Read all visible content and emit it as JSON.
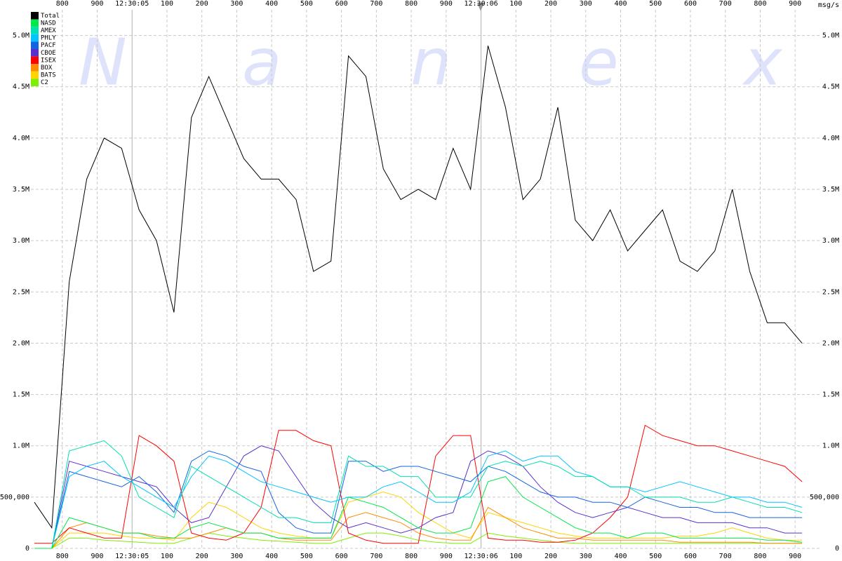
{
  "chart_data": {
    "type": "line",
    "watermark": [
      "N",
      "a",
      "n",
      "e",
      "x"
    ],
    "y_unit": "msg/s",
    "x": [
      4720,
      4770,
      4820,
      4870,
      4920,
      4970,
      5020,
      5070,
      5120,
      5170,
      5220,
      5270,
      5320,
      5370,
      5420,
      5470,
      5520,
      5570,
      5620,
      5670,
      5720,
      5770,
      5820,
      5870,
      5920,
      5970,
      6020,
      6070,
      6120,
      6170,
      6220,
      6270,
      6320,
      6370,
      6420,
      6470,
      6520,
      6570,
      6620,
      6670,
      6720,
      6770,
      6820,
      6870,
      6920
    ],
    "xlim": [
      4710,
      6970
    ],
    "xticks": [
      {
        "value": 4800,
        "label": "800"
      },
      {
        "value": 4900,
        "label": "900"
      },
      {
        "value": 5000,
        "label": "12:30:05"
      },
      {
        "value": 5100,
        "label": "100"
      },
      {
        "value": 5200,
        "label": "200"
      },
      {
        "value": 5300,
        "label": "300"
      },
      {
        "value": 5400,
        "label": "400"
      },
      {
        "value": 5500,
        "label": "500"
      },
      {
        "value": 5600,
        "label": "600"
      },
      {
        "value": 5700,
        "label": "700"
      },
      {
        "value": 5800,
        "label": "800"
      },
      {
        "value": 5900,
        "label": "900"
      },
      {
        "value": 6000,
        "label": "12:30:06"
      },
      {
        "value": 6100,
        "label": "100"
      },
      {
        "value": 6200,
        "label": "200"
      },
      {
        "value": 6300,
        "label": "300"
      },
      {
        "value": 6400,
        "label": "400"
      },
      {
        "value": 6500,
        "label": "500"
      },
      {
        "value": 6600,
        "label": "600"
      },
      {
        "value": 6700,
        "label": "700"
      },
      {
        "value": 6800,
        "label": "800"
      },
      {
        "value": 6900,
        "label": "900"
      }
    ],
    "ylim": [
      0,
      5250000
    ],
    "yticks": [
      0,
      {
        "value": 500000,
        "label": "500,000"
      },
      {
        "value": 1000000,
        "label": "1.0M"
      },
      {
        "value": 1500000,
        "label": "1.5M"
      },
      {
        "value": 2000000,
        "label": "2.0M"
      },
      {
        "value": 2500000,
        "label": "2.5M"
      },
      {
        "value": 3000000,
        "label": "3.0M"
      },
      {
        "value": 3500000,
        "label": "3.5M"
      },
      {
        "value": 4000000,
        "label": "4.0M"
      },
      {
        "value": 4500000,
        "label": "4.5M"
      },
      {
        "value": 5000000,
        "label": "5.0M"
      }
    ],
    "grid": true,
    "legend": "top-left",
    "series": [
      {
        "name": "Total",
        "color": "#000000",
        "values": [
          450000,
          200000,
          2600000,
          3600000,
          4000000,
          3900000,
          3300000,
          3000000,
          2300000,
          4200000,
          4600000,
          4200000,
          3800000,
          3600000,
          3600000,
          3400000,
          2700000,
          2800000,
          4800000,
          4600000,
          3700000,
          3400000,
          3500000,
          3400000,
          3900000,
          3500000,
          4900000,
          4300000,
          3400000,
          3600000,
          4300000,
          3200000,
          3000000,
          3300000,
          2900000,
          3100000,
          3300000,
          2800000,
          2700000,
          2900000,
          3500000,
          2700000,
          2200000,
          2200000,
          2000000
        ]
      },
      {
        "name": "NASD",
        "color": "#00e84a",
        "values": [
          0,
          0,
          300000,
          250000,
          200000,
          150000,
          150000,
          100000,
          100000,
          200000,
          250000,
          200000,
          150000,
          150000,
          100000,
          100000,
          100000,
          100000,
          500000,
          450000,
          400000,
          300000,
          200000,
          150000,
          150000,
          200000,
          650000,
          700000,
          500000,
          400000,
          300000,
          200000,
          150000,
          150000,
          100000,
          150000,
          150000,
          100000,
          100000,
          100000,
          100000,
          100000,
          80000,
          80000,
          60000
        ]
      },
      {
        "name": "AMEX",
        "color": "#00e0b0",
        "values": [
          0,
          0,
          950000,
          1000000,
          1050000,
          900000,
          500000,
          400000,
          300000,
          800000,
          700000,
          600000,
          500000,
          400000,
          300000,
          300000,
          250000,
          250000,
          900000,
          800000,
          800000,
          700000,
          700000,
          500000,
          500000,
          500000,
          800000,
          850000,
          800000,
          850000,
          800000,
          700000,
          700000,
          600000,
          600000,
          500000,
          500000,
          500000,
          450000,
          450000,
          500000,
          450000,
          400000,
          400000,
          350000
        ]
      },
      {
        "name": "PHLY",
        "color": "#00c4ff",
        "values": [
          0,
          0,
          700000,
          800000,
          850000,
          700000,
          600000,
          500000,
          400000,
          700000,
          900000,
          850000,
          750000,
          650000,
          600000,
          550000,
          500000,
          450000,
          500000,
          500000,
          600000,
          650000,
          550000,
          450000,
          450000,
          550000,
          900000,
          950000,
          850000,
          900000,
          900000,
          750000,
          700000,
          600000,
          600000,
          550000,
          600000,
          650000,
          600000,
          550000,
          500000,
          500000,
          450000,
          450000,
          400000
        ]
      },
      {
        "name": "PACF",
        "color": "#1464e0",
        "values": [
          0,
          0,
          750000,
          700000,
          650000,
          600000,
          700000,
          550000,
          350000,
          850000,
          950000,
          900000,
          800000,
          750000,
          350000,
          200000,
          150000,
          150000,
          850000,
          850000,
          750000,
          800000,
          800000,
          750000,
          700000,
          650000,
          800000,
          750000,
          650000,
          550000,
          500000,
          500000,
          450000,
          450000,
          400000,
          500000,
          450000,
          400000,
          400000,
          350000,
          350000,
          300000,
          300000,
          300000,
          300000
        ]
      },
      {
        "name": "CBOE",
        "color": "#5a30cc",
        "values": [
          0,
          0,
          850000,
          800000,
          750000,
          700000,
          650000,
          600000,
          400000,
          250000,
          300000,
          600000,
          900000,
          1000000,
          950000,
          700000,
          450000,
          300000,
          200000,
          250000,
          200000,
          150000,
          200000,
          300000,
          350000,
          850000,
          950000,
          900000,
          800000,
          600000,
          450000,
          350000,
          300000,
          350000,
          400000,
          350000,
          300000,
          300000,
          250000,
          250000,
          250000,
          200000,
          200000,
          150000,
          150000
        ]
      },
      {
        "name": "ISEX",
        "color": "#ff0000",
        "values": [
          50000,
          50000,
          200000,
          150000,
          100000,
          100000,
          1100000,
          1000000,
          850000,
          150000,
          100000,
          80000,
          150000,
          400000,
          1150000,
          1150000,
          1050000,
          1000000,
          150000,
          80000,
          50000,
          50000,
          50000,
          900000,
          1100000,
          1100000,
          100000,
          80000,
          80000,
          60000,
          60000,
          80000,
          150000,
          300000,
          500000,
          1200000,
          1100000,
          1050000,
          1000000,
          1000000,
          950000,
          900000,
          850000,
          800000,
          650000
        ]
      },
      {
        "name": "BOX",
        "color": "#ff8c00",
        "values": [
          0,
          0,
          200000,
          250000,
          200000,
          150000,
          150000,
          120000,
          100000,
          100000,
          150000,
          200000,
          150000,
          150000,
          100000,
          80000,
          80000,
          80000,
          300000,
          350000,
          300000,
          250000,
          150000,
          100000,
          80000,
          80000,
          400000,
          300000,
          200000,
          150000,
          100000,
          100000,
          80000,
          80000,
          80000,
          80000,
          80000,
          60000,
          60000,
          60000,
          60000,
          60000,
          50000,
          50000,
          50000
        ]
      },
      {
        "name": "BATS",
        "color": "#ffd400",
        "values": [
          0,
          0,
          150000,
          150000,
          150000,
          120000,
          100000,
          100000,
          80000,
          300000,
          450000,
          400000,
          300000,
          200000,
          150000,
          120000,
          100000,
          100000,
          450000,
          500000,
          550000,
          500000,
          350000,
          250000,
          150000,
          100000,
          350000,
          300000,
          250000,
          200000,
          150000,
          120000,
          100000,
          100000,
          100000,
          100000,
          100000,
          120000,
          120000,
          150000,
          200000,
          150000,
          100000,
          80000,
          80000
        ]
      },
      {
        "name": "C2",
        "color": "#7cf000",
        "values": [
          0,
          0,
          100000,
          100000,
          80000,
          70000,
          60000,
          50000,
          50000,
          100000,
          150000,
          120000,
          100000,
          80000,
          70000,
          60000,
          50000,
          50000,
          100000,
          150000,
          150000,
          120000,
          80000,
          60000,
          50000,
          50000,
          150000,
          120000,
          100000,
          80000,
          60000,
          50000,
          50000,
          50000,
          50000,
          50000,
          50000,
          50000,
          50000,
          50000,
          50000,
          50000,
          50000,
          50000,
          50000
        ]
      }
    ]
  }
}
